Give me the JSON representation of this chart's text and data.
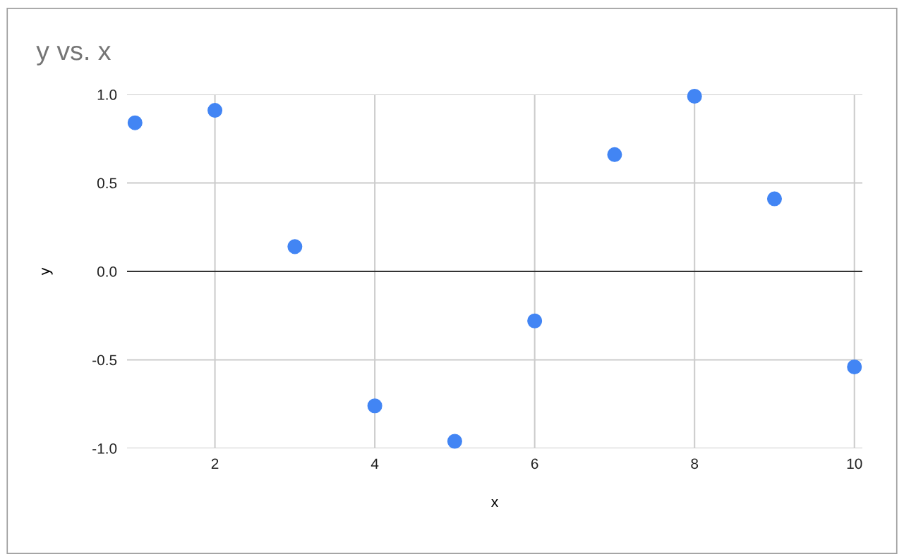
{
  "chart_data": {
    "type": "scatter",
    "title": "y vs. x",
    "xlabel": "x",
    "ylabel": "y",
    "x": [
      1,
      2,
      3,
      4,
      5,
      6,
      7,
      8,
      9,
      10
    ],
    "series": [
      {
        "color": "#4285f4",
        "values": [
          0.84,
          0.91,
          0.14,
          -0.76,
          -0.96,
          -0.28,
          0.66,
          0.99,
          0.41,
          -0.54
        ]
      }
    ],
    "xlim": [
      0.9,
      10.1
    ],
    "ylim": [
      -1,
      1
    ],
    "xticks": [
      2,
      4,
      6,
      8,
      10
    ],
    "yticks": [
      {
        "value": -1,
        "label": "-1.0"
      },
      {
        "value": -0.5,
        "label": "-0.5"
      },
      {
        "value": 0,
        "label": "0.0"
      },
      {
        "value": 0.5,
        "label": "0.5"
      },
      {
        "value": 1,
        "label": "1.0"
      }
    ],
    "ref_lines": [
      {
        "axis": "y",
        "value": 0,
        "color": "#333333"
      }
    ],
    "grid": true,
    "marker": "circle"
  }
}
